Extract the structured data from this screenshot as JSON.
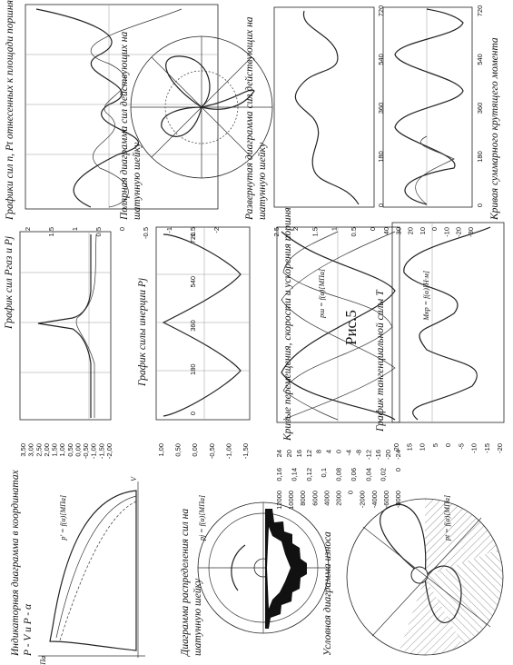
{
  "figure_label": "Рис.5",
  "panels": [
    {
      "caption": [
        "Индикаторная диаграмма в координатах",
        "P - V и P - α"
      ],
      "axis_labels": [
        "P, МПа",
        "V"
      ]
    },
    {
      "caption": [
        "Диаграмма распределения сил на",
        "шатунную шейку"
      ]
    },
    {
      "caption": [
        "Условная диаграмма износа"
      ]
    },
    {
      "caption": [
        "График сил Pгаз и Pj"
      ],
      "ticks": [
        [
          "3,50",
          "3,00",
          "2,50",
          "2,00",
          "1,50",
          "1,00",
          "0,50",
          "0,00",
          "-0,50",
          "-1,00",
          "-1,50",
          "-2,00"
        ]
      ],
      "axis_labels": [
        "p' = f(α)[МПа]"
      ]
    },
    {
      "caption": [
        "График силы инерции Pj"
      ],
      "ticks": [
        [
          "1,00",
          "0,50",
          "0,00",
          "-0,50",
          "-1,00",
          "-1,50"
        ],
        [
          "0",
          "180",
          "360",
          "540",
          "720"
        ]
      ],
      "axis_labels": [
        "pj = f(α)[МПа]"
      ]
    },
    {
      "caption": [
        "Кривые перемещения, скорости и ускорения поршня"
      ],
      "ticks": [
        [
          "12000",
          "10000",
          "8000",
          "6000",
          "4000",
          "2000",
          "0",
          "-2000",
          "-4000",
          "-6000",
          "-8000"
        ],
        [
          "0,16",
          "0,14",
          "0,12",
          "0,1",
          "0,08",
          "0,06",
          "0,04",
          "0,02",
          "0"
        ],
        [
          "24",
          "20",
          "16",
          "12",
          "8",
          "4",
          "0",
          "-4",
          "-8",
          "-12",
          "-16",
          "-20",
          "-24"
        ]
      ]
    },
    {
      "caption": [
        "График тангенциальной силы T"
      ],
      "ticks": [
        [
          "20",
          "15",
          "10",
          "5",
          "0",
          "-5",
          "-10",
          "-15",
          "-20"
        ]
      ],
      "axis_labels": [
        "pt = f(α)[МПа]"
      ]
    },
    {
      "caption": [
        "Графики сил n, Pt отнесенных к площади поршня"
      ],
      "ticks": [
        [
          "2",
          "1.5",
          "1",
          "0.5",
          "0",
          "-0.5",
          "-1",
          "-1.5",
          "-2"
        ]
      ]
    },
    {
      "caption": [
        "Полярная диаграмма сил действующих на",
        "шатунную шейку"
      ]
    },
    {
      "caption": [
        "Развернутая диаграмма сил действующих на",
        "шатунную шейку"
      ],
      "ticks": [
        [
          "2.5",
          "2",
          "1.5",
          "1",
          "0.5",
          "0"
        ],
        [
          "0",
          "180",
          "360",
          "540",
          "720"
        ]
      ],
      "axis_labels": [
        "pш = f(α)[МПа]"
      ]
    },
    {
      "caption": [
        "Кривая суммарного крутящего момента"
      ],
      "ticks": [
        [
          "40",
          "30",
          "20",
          "10",
          "0",
          "-10",
          "-20",
          "-30"
        ],
        [
          "0",
          "180",
          "360",
          "540",
          "720"
        ]
      ],
      "axis_labels": [
        "Mкр = f(α)[Н·м]"
      ]
    }
  ]
}
